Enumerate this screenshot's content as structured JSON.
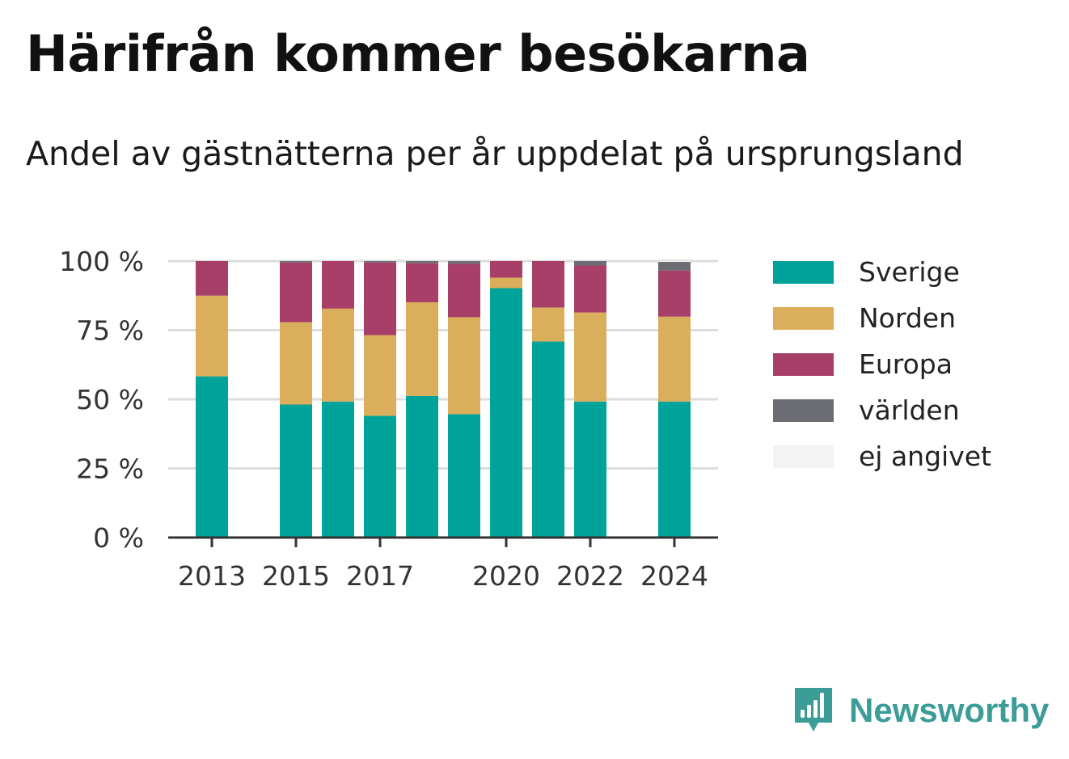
{
  "title": "Härifrån kommer besökarna",
  "subtitle": "Andel av gästnätterna per år uppdelat på ursprungsland",
  "brand": {
    "name": "Newsworthy",
    "color": "#3b9c98",
    "icon": "speech-bubble-bar-chart-icon"
  },
  "colors": {
    "Sverige": "#00a39a",
    "Norden": "#dbae5b",
    "Europa": "#a73f68",
    "världen": "#6c6d73",
    "ej angivet": "#f3f3f3"
  },
  "legend": [
    "Sverige",
    "Norden",
    "Europa",
    "världen",
    "ej angivet"
  ],
  "chart_data": {
    "type": "bar",
    "stacked": true,
    "categories": [
      2013,
      2014,
      2015,
      2016,
      2017,
      2018,
      2019,
      2020,
      2021,
      2022,
      2023,
      2024
    ],
    "x_tick_labels": [
      "2013",
      "2015",
      "2017",
      "2020",
      "2022",
      "2024"
    ],
    "y_tick_labels": [
      "0 %",
      "25 %",
      "50 %",
      "75 %",
      "100 %"
    ],
    "ylim": [
      0,
      100
    ],
    "y_unit": "%",
    "grid": true,
    "legend_position": "right",
    "series": [
      {
        "name": "Sverige",
        "values": [
          58.3,
          null,
          48.1,
          49.2,
          44.0,
          51.2,
          44.6,
          90.2,
          70.9,
          49.2,
          null,
          49.2
        ]
      },
      {
        "name": "Norden",
        "values": [
          29.2,
          null,
          29.8,
          33.6,
          29.2,
          33.9,
          35.1,
          3.8,
          12.3,
          32.2,
          null,
          30.7
        ]
      },
      {
        "name": "Europa",
        "values": [
          12.5,
          null,
          21.6,
          17.2,
          26.3,
          14.1,
          19.3,
          6.0,
          16.8,
          17.0,
          null,
          16.7
        ]
      },
      {
        "name": "världen",
        "values": [
          0,
          null,
          0.5,
          0,
          0.5,
          0.8,
          1.0,
          0,
          0,
          1.6,
          null,
          3.1
        ]
      },
      {
        "name": "ej angivet",
        "values": [
          0,
          null,
          0,
          0,
          0,
          0,
          0,
          0,
          0,
          0,
          null,
          0.3
        ]
      }
    ]
  }
}
